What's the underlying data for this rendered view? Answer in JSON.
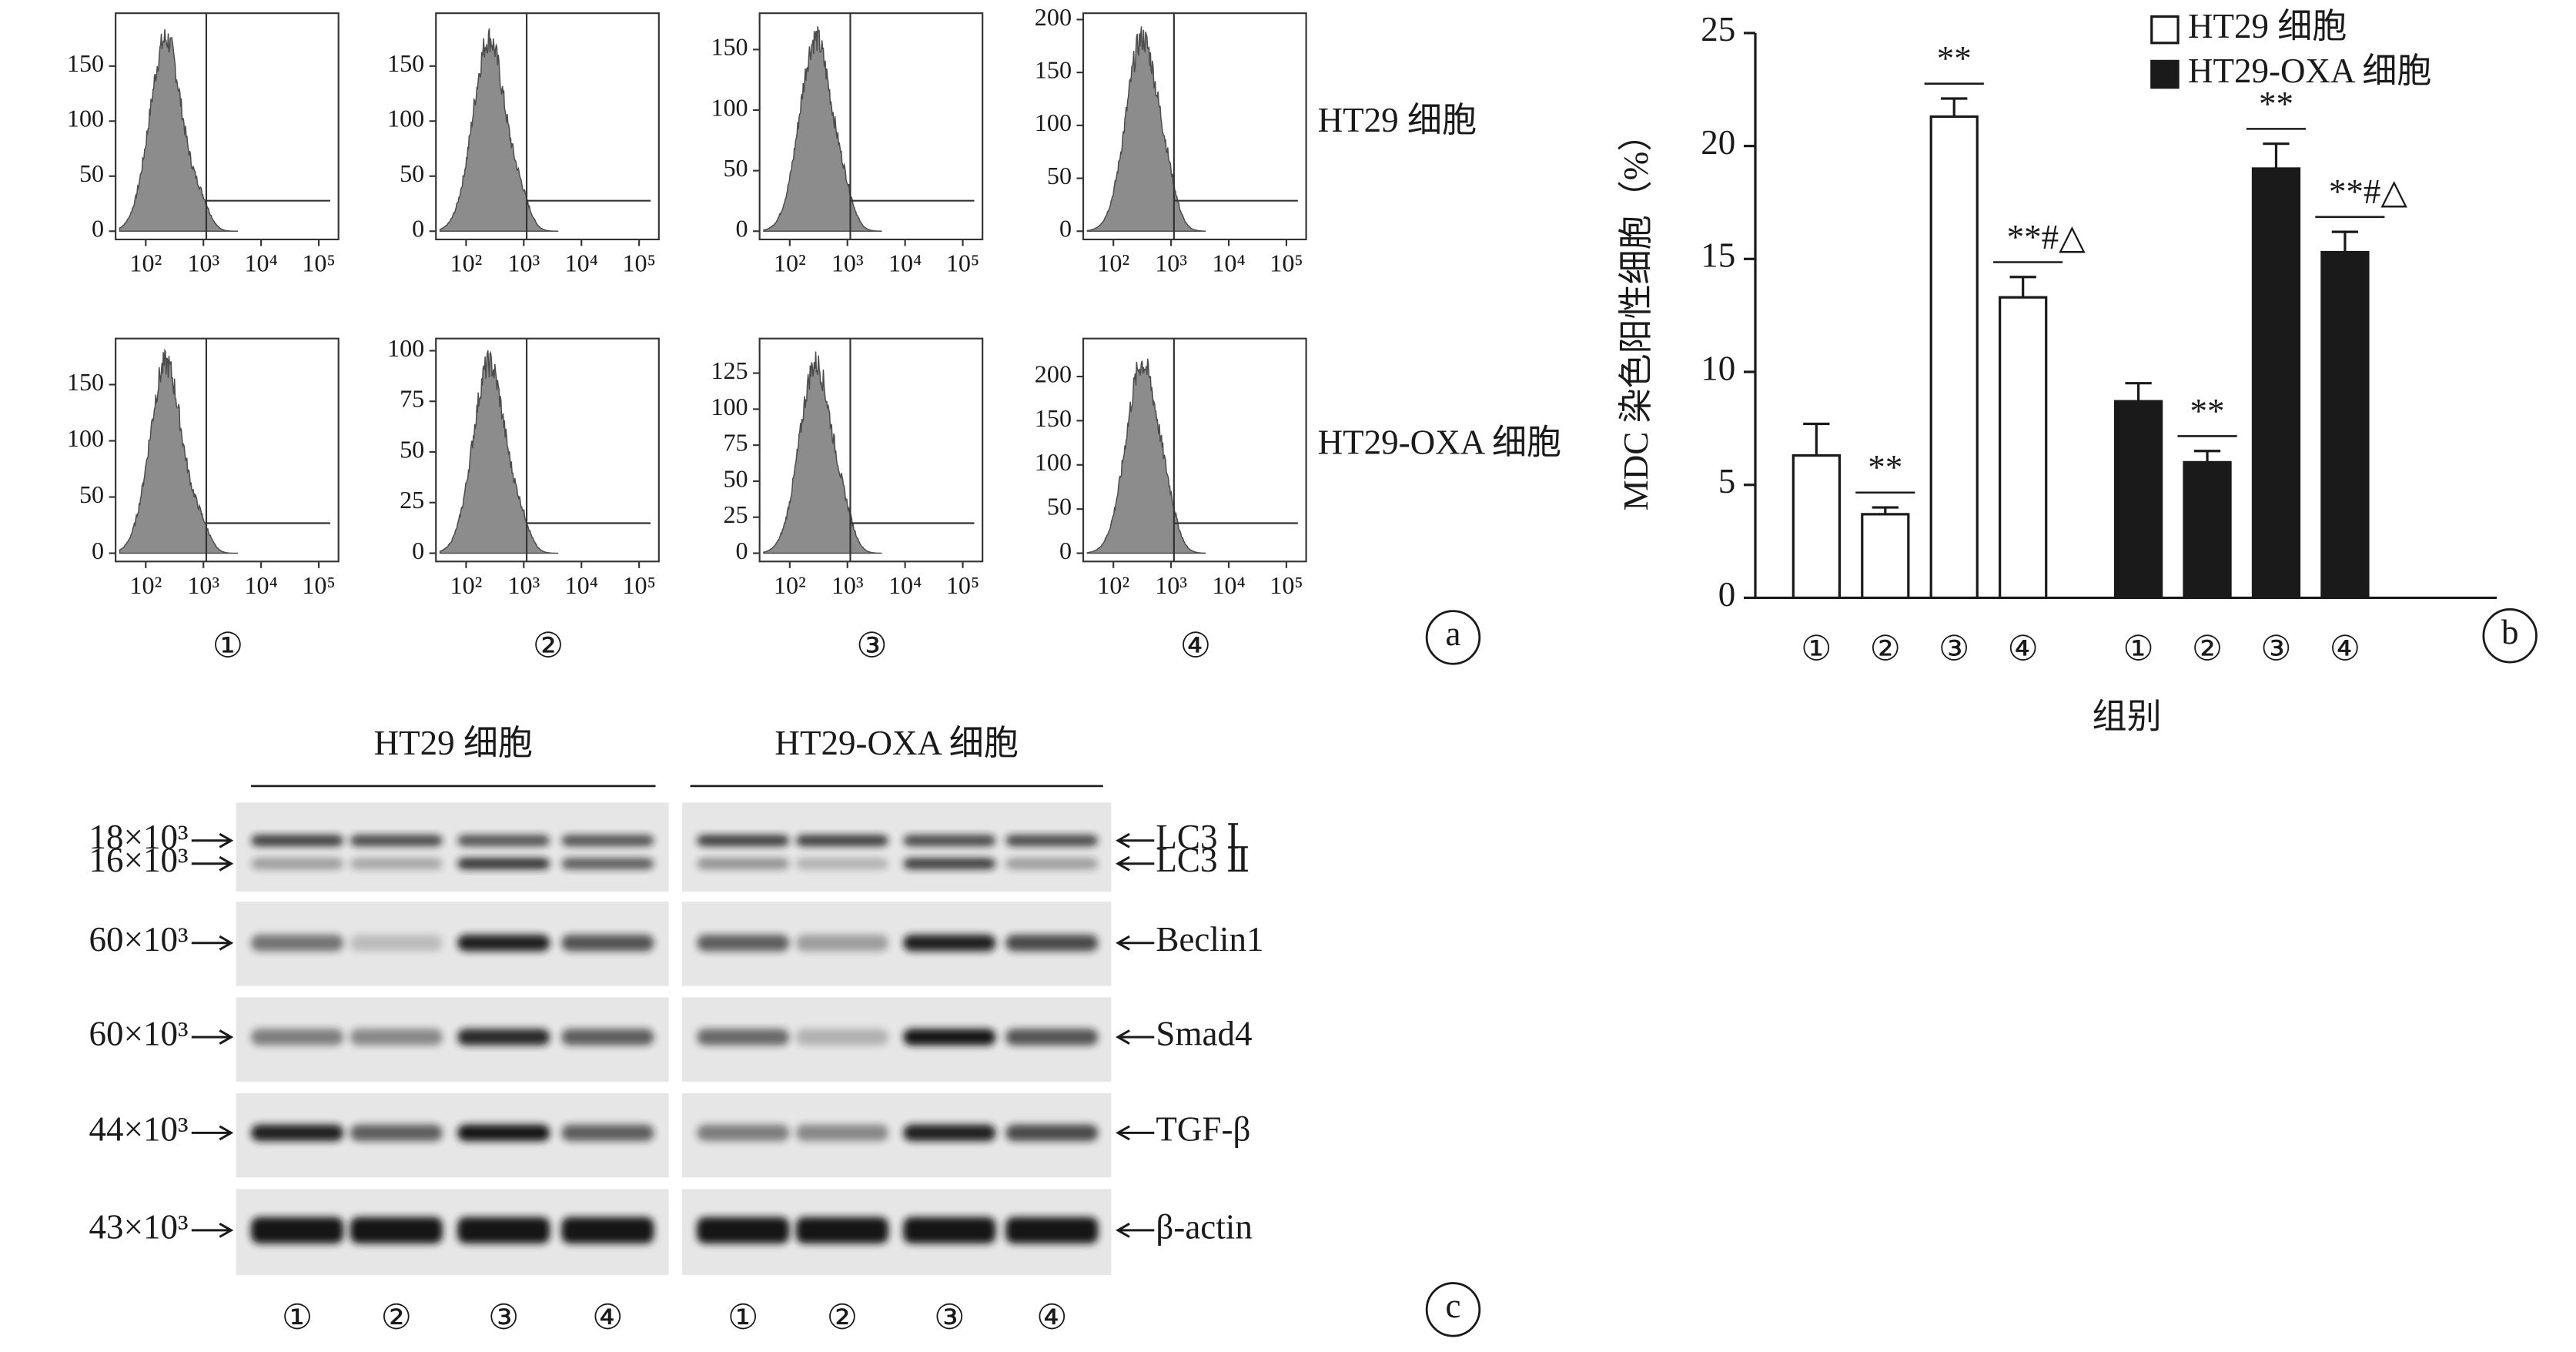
{
  "panel_labels": [
    "a",
    "b",
    "c"
  ],
  "flow_cytometry": {
    "row_labels": [
      "HT29 细胞",
      "HT29-OXA 细胞"
    ],
    "column_labels": [
      "①",
      "②",
      "③",
      "④"
    ],
    "xscale": "log",
    "xlim": [
      30,
      220000
    ],
    "xticks": [
      {
        "value": 100,
        "label": "10²"
      },
      {
        "value": 1000,
        "label": "10³"
      },
      {
        "value": 10000,
        "label": "10⁴"
      },
      {
        "value": 100000,
        "label": "10⁵"
      }
    ],
    "panels": [
      [
        {
          "ylim": [
            0,
            198
          ],
          "yticks": [
            0,
            50,
            100,
            150
          ]
        },
        {
          "ylim": [
            0,
            198
          ],
          "yticks": [
            0,
            50,
            100,
            150
          ]
        },
        {
          "ylim": [
            0,
            180
          ],
          "yticks": [
            0,
            50,
            100,
            150
          ]
        },
        {
          "ylim": [
            0,
            206
          ],
          "yticks": [
            0,
            50,
            100,
            150,
            200
          ]
        }
      ],
      [
        {
          "ylim": [
            0,
            191
          ],
          "yticks": [
            0,
            50,
            100,
            150
          ]
        },
        {
          "ylim": [
            0,
            106
          ],
          "yticks": [
            0,
            25,
            50,
            75,
            100
          ]
        },
        {
          "ylim": [
            0,
            149
          ],
          "yticks": [
            0,
            25,
            50,
            75,
            100,
            125
          ]
        },
        {
          "ylim": [
            0,
            243
          ],
          "yticks": [
            0,
            50,
            100,
            150,
            200
          ]
        }
      ]
    ]
  },
  "chart_data": {
    "type": "bar",
    "ylabel": "MDC 染色阳性细胞（%）",
    "xlabel": "组别",
    "categories": [
      "①",
      "②",
      "③",
      "④"
    ],
    "ylim": [
      0,
      25
    ],
    "yticks": [
      0,
      5,
      10,
      15,
      20,
      25
    ],
    "legend": "upper right",
    "series": [
      {
        "name": "HT29 细胞",
        "color": "#ffffff",
        "values": [
          6.3,
          3.7,
          21.3,
          13.3
        ],
        "errors": [
          1.4,
          0.3,
          0.8,
          0.9
        ],
        "annotations": [
          null,
          "**",
          "**",
          "**#△"
        ]
      },
      {
        "name": "HT29-OXA 细胞",
        "color": "#1a1a1a",
        "values": [
          8.7,
          6.0,
          19.0,
          15.3
        ],
        "errors": [
          0.8,
          0.5,
          1.1,
          0.9
        ],
        "annotations": [
          null,
          "**",
          "**",
          "**#△"
        ]
      }
    ]
  },
  "western_blot": {
    "group_labels": [
      "HT29 细胞",
      "HT29-OXA 细胞"
    ],
    "lane_labels": [
      "①",
      "②",
      "③",
      "④"
    ],
    "rows": [
      {
        "markers": [
          "18×10³",
          "16×10³"
        ],
        "proteins": [
          "LC3 Ⅰ",
          "LC3 Ⅱ"
        ]
      },
      {
        "markers": [
          "60×10³"
        ],
        "proteins": [
          "Beclin1"
        ]
      },
      {
        "markers": [
          "60×10³"
        ],
        "proteins": [
          "Smad4"
        ]
      },
      {
        "markers": [
          "44×10³"
        ],
        "proteins": [
          "TGF-β"
        ]
      },
      {
        "markers": [
          "43×10³"
        ],
        "proteins": [
          "β-actin"
        ]
      }
    ]
  }
}
